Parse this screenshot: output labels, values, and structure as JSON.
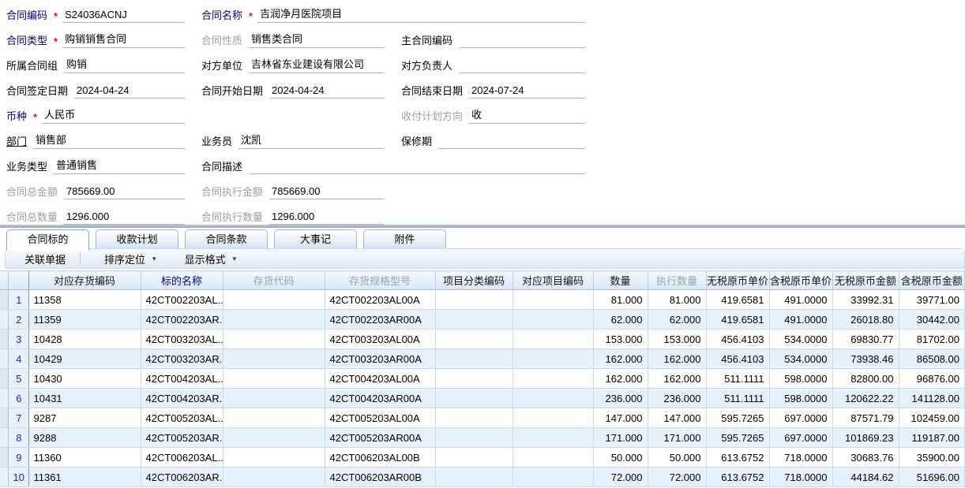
{
  "required_mark": "*",
  "colors": {
    "required_label": "#000085",
    "muted_label": "#9aa0a8",
    "asterisk": "#e01b00",
    "row_stripe": "#e7f1fa",
    "grid_line": "#c9daec",
    "header_bg_top": "#f3f8fd",
    "header_bg_bottom": "#dbe8f6",
    "row_number_text": "#1f1fd0"
  },
  "form": {
    "fields": [
      {
        "label": "合同编码",
        "required": true,
        "value": "S24036ACNJ"
      },
      {
        "label": "合同名称",
        "required": true,
        "value": "吉润净月医院项目"
      },
      {
        "label": "合同类型",
        "required": true,
        "value": "购销销售合同"
      },
      {
        "label": "合同性质",
        "required": false,
        "value": "销售类合同"
      },
      {
        "label": "主合同编码",
        "required": false,
        "value": ""
      },
      {
        "label": "所属合同组",
        "required": false,
        "value": "购销"
      },
      {
        "label": "对方单位",
        "required": false,
        "value": "吉林省东业建设有限公司"
      },
      {
        "label": "对方负责人",
        "required": false,
        "value": ""
      },
      {
        "label": "合同签定日期",
        "required": false,
        "value": "2024-04-24"
      },
      {
        "label": "合同开始日期",
        "required": false,
        "value": "2024-04-24"
      },
      {
        "label": "合同结束日期",
        "required": false,
        "value": "2024-07-24"
      },
      {
        "label": "币种",
        "required": true,
        "value": "人民币"
      },
      {
        "label": "收付计划方向",
        "required": false,
        "value": "收"
      },
      {
        "label": "部门",
        "required": false,
        "value": "销售部"
      },
      {
        "label": "业务员",
        "required": false,
        "value": "沈凯"
      },
      {
        "label": "保修期",
        "required": false,
        "value": ""
      },
      {
        "label": "业务类型",
        "required": false,
        "value": "普通销售"
      },
      {
        "label": "合同描述",
        "required": false,
        "value": ""
      },
      {
        "label": "合同总金额",
        "required": false,
        "value": "785669.00"
      },
      {
        "label": "合同执行金额",
        "required": false,
        "value": "785669.00"
      },
      {
        "label": "合同总数量",
        "required": false,
        "value": "1296.000"
      },
      {
        "label": "合同执行数量",
        "required": false,
        "value": "1296.000"
      }
    ]
  },
  "tabs": [
    {
      "label": "合同标的",
      "active": true
    },
    {
      "label": "收款计划",
      "active": false
    },
    {
      "label": "合同条款",
      "active": false
    },
    {
      "label": "大事记",
      "active": false
    },
    {
      "label": "附件",
      "active": false
    }
  ],
  "toolbar": {
    "buttons": [
      {
        "label": "关联单据",
        "dropdown": false
      },
      {
        "label": "排序定位",
        "dropdown": true
      },
      {
        "label": "显示格式",
        "dropdown": true
      }
    ],
    "dropdown_arrow": "▾"
  },
  "table": {
    "columns": [
      {
        "label": "对应存货编码",
        "align": "left",
        "style": "normal"
      },
      {
        "label": "标的名称",
        "align": "left",
        "style": "navy"
      },
      {
        "label": "存货代码",
        "align": "left",
        "style": "muted"
      },
      {
        "label": "存货规格型号",
        "align": "left",
        "style": "muted"
      },
      {
        "label": "项目分类编码",
        "align": "left",
        "style": "normal"
      },
      {
        "label": "对应项目编码",
        "align": "left",
        "style": "normal"
      },
      {
        "label": "数量",
        "align": "right",
        "style": "normal"
      },
      {
        "label": "执行数量",
        "align": "right",
        "style": "muted"
      },
      {
        "label": "无税原币单价",
        "align": "right",
        "style": "normal"
      },
      {
        "label": "含税原币单价",
        "align": "right",
        "style": "normal"
      },
      {
        "label": "无税原币金额",
        "align": "right",
        "style": "normal"
      },
      {
        "label": "含税原币金额",
        "align": "right",
        "style": "normal"
      }
    ],
    "rows": [
      [
        "11358",
        "42CT002203AL...",
        "",
        "42CT002203AL00A",
        "",
        "",
        "81.000",
        "81.000",
        "419.6581",
        "491.0000",
        "33992.31",
        "39771.00"
      ],
      [
        "11359",
        "42CT002203AR...",
        "",
        "42CT002203AR00A",
        "",
        "",
        "62.000",
        "62.000",
        "419.6581",
        "491.0000",
        "26018.80",
        "30442.00"
      ],
      [
        "10428",
        "42CT003203AL...",
        "",
        "42CT003203AL00A",
        "",
        "",
        "153.000",
        "153.000",
        "456.4103",
        "534.0000",
        "69830.77",
        "81702.00"
      ],
      [
        "10429",
        "42CT003203AR...",
        "",
        "42CT003203AR00A",
        "",
        "",
        "162.000",
        "162.000",
        "456.4103",
        "534.0000",
        "73938.46",
        "86508.00"
      ],
      [
        "10430",
        "42CT004203AL...",
        "",
        "42CT004203AL00A",
        "",
        "",
        "162.000",
        "162.000",
        "511.1111",
        "598.0000",
        "82800.00",
        "96876.00"
      ],
      [
        "10431",
        "42CT004203AR...",
        "",
        "42CT004203AR00A",
        "",
        "",
        "236.000",
        "236.000",
        "511.1111",
        "598.0000",
        "120622.22",
        "141128.00"
      ],
      [
        "9287",
        "42CT005203AL...",
        "",
        "42CT005203AL00A",
        "",
        "",
        "147.000",
        "147.000",
        "595.7265",
        "697.0000",
        "87571.79",
        "102459.00"
      ],
      [
        "9288",
        "42CT005203AR...",
        "",
        "42CT005203AR00A",
        "",
        "",
        "171.000",
        "171.000",
        "595.7265",
        "697.0000",
        "101869.23",
        "119187.00"
      ],
      [
        "11360",
        "42CT006203AL...",
        "",
        "42CT006203AL00B",
        "",
        "",
        "50.000",
        "50.000",
        "613.6752",
        "718.0000",
        "30683.76",
        "35900.00"
      ],
      [
        "11361",
        "42CT006203AR...",
        "",
        "42CT006203AR00B",
        "",
        "",
        "72.000",
        "72.000",
        "613.6752",
        "718.0000",
        "44184.62",
        "51696.00"
      ]
    ]
  }
}
